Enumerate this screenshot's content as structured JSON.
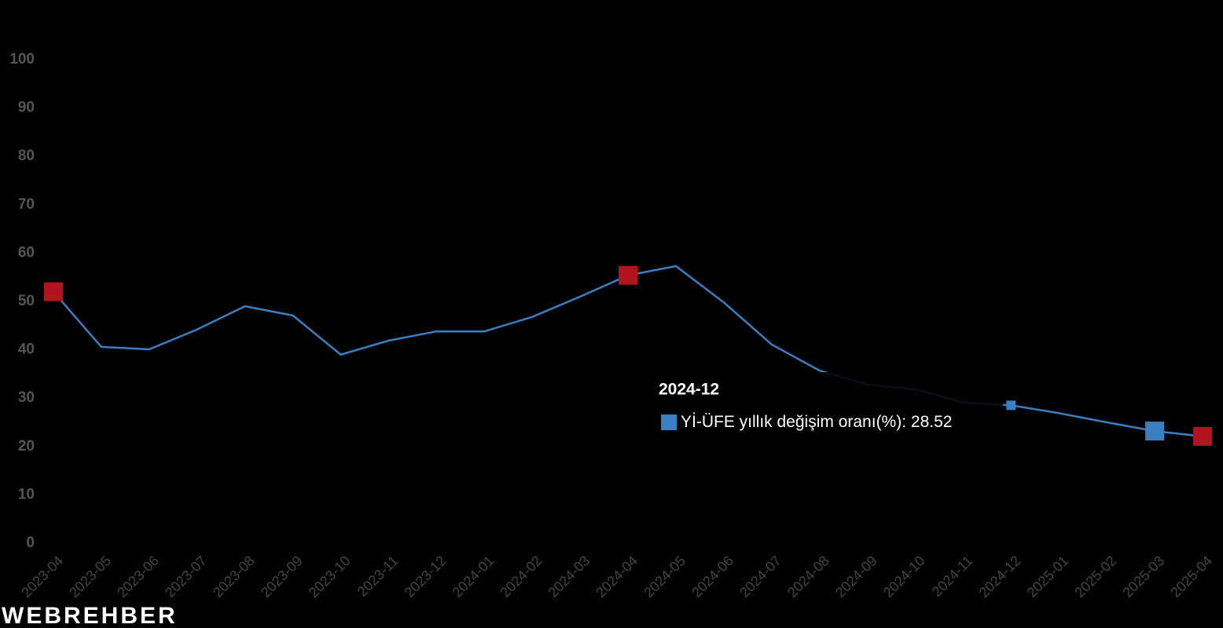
{
  "chart_data": {
    "type": "line",
    "categories": [
      "2023-04",
      "2023-05",
      "2023-06",
      "2023-07",
      "2023-08",
      "2023-09",
      "2023-10",
      "2023-11",
      "2023-12",
      "2024-01",
      "2024-02",
      "2024-03",
      "2024-04",
      "2024-05",
      "2024-06",
      "2024-07",
      "2024-08",
      "2024-09",
      "2024-10",
      "2024-11",
      "2024-12",
      "2025-01",
      "2025-02",
      "2025-03",
      "2025-04"
    ],
    "series": [
      {
        "name": "Yİ-ÜFE yıllık değişim oranı(%)",
        "color": "#3a7fc2",
        "values": [
          52.0,
          40.6,
          40.1,
          44.2,
          49.0,
          47.1,
          39.0,
          41.9,
          43.8,
          43.8,
          46.8,
          51.0,
          55.4,
          57.3,
          49.8,
          41.1,
          35.7,
          32.8,
          31.8,
          29.1,
          28.52,
          26.9,
          25.0,
          23.2,
          22.1
        ]
      }
    ],
    "highlights": [
      {
        "index": 0,
        "color": "#b3151e"
      },
      {
        "index": 12,
        "color": "#b3151e"
      },
      {
        "index": 24,
        "color": "#b3151e"
      },
      {
        "index": 23,
        "color": "#3a7fc2"
      }
    ],
    "tooltip_index": 20,
    "ylim": [
      0,
      100
    ],
    "yticks": [
      0,
      10,
      20,
      30,
      40,
      50,
      60,
      70,
      80,
      90,
      100
    ],
    "watermark": "WEBREHBER"
  }
}
